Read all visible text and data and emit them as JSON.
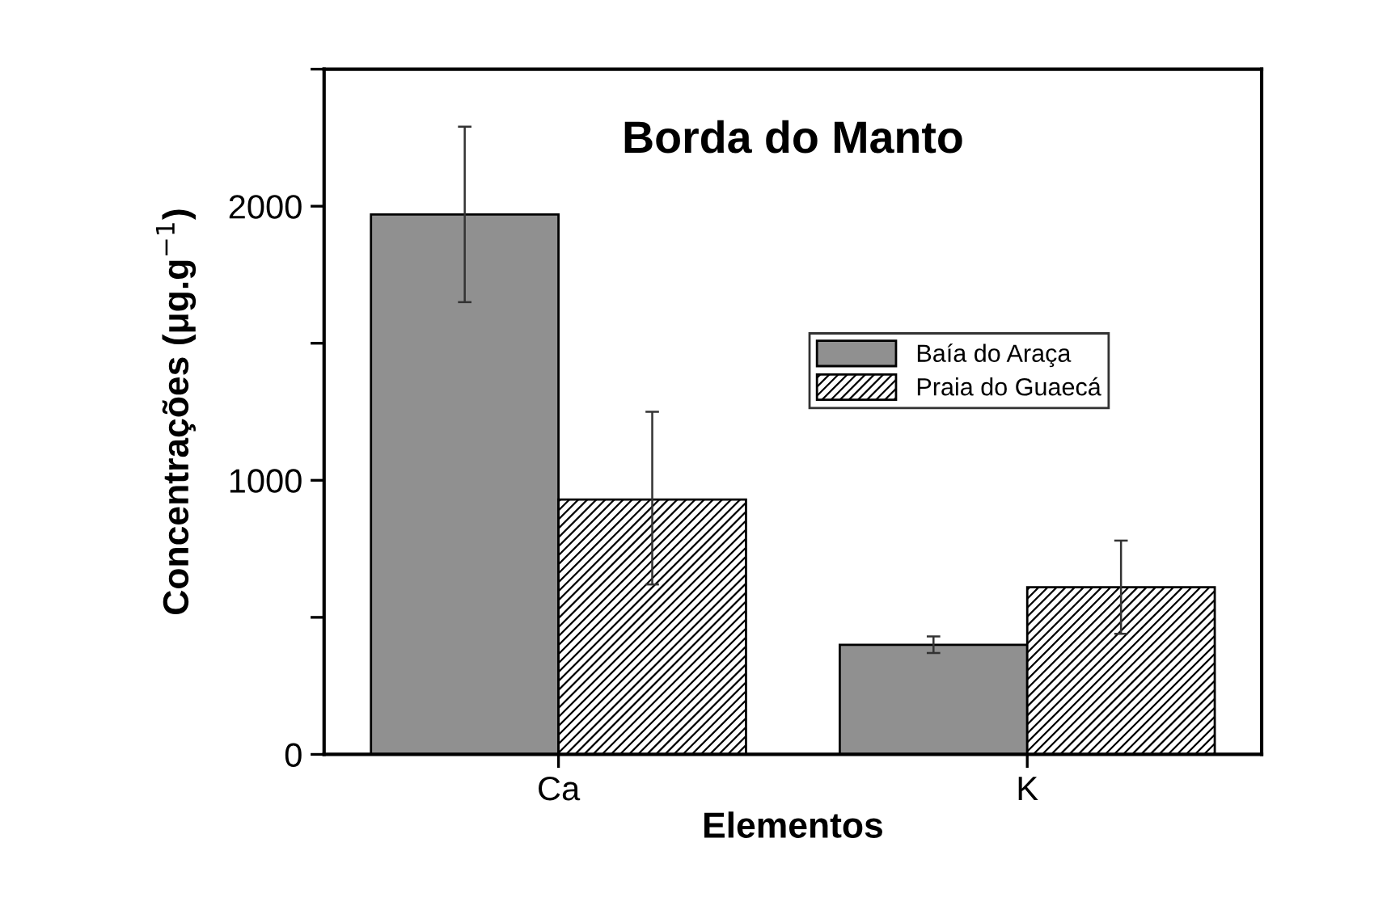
{
  "chart_data": {
    "type": "bar",
    "title": "Borda do Manto",
    "xlabel": "Elementos",
    "ylabel": "Concentrações (μg.g$^{−1}$)",
    "categories": [
      "Ca",
      "K"
    ],
    "series": [
      {
        "name": "Baía do Araça",
        "color": "#909090",
        "values": [
          1970,
          400
        ],
        "errors": [
          [
            1650,
            2290
          ],
          [
            370,
            430
          ]
        ]
      },
      {
        "name": "Praia do Guaecá",
        "color": "#000000",
        "values": [
          930,
          610
        ],
        "errors": [
          [
            620,
            1250
          ],
          [
            440,
            780
          ]
        ]
      }
    ],
    "ylim": [
      0,
      2500
    ],
    "yticks": [
      0,
      {
        "value": 500,
        "label": null
      },
      1000,
      {
        "value": 1500,
        "label": null
      },
      2000,
      {
        "value": 2500,
        "label": null
      }
    ],
    "grid": false,
    "legend": "right"
  }
}
